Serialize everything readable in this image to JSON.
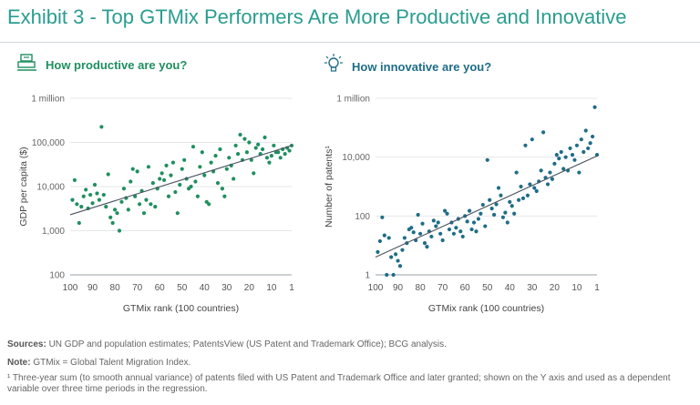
{
  "header": {
    "title": "Exhibit 3 - Top GTMix Performers Are More Productive and Innovative"
  },
  "colors": {
    "title": "#2a9d8f",
    "left_accent": "#1f8f5f",
    "right_accent": "#1f6d87",
    "dots_left": "#1f8f5f",
    "dots_right": "#1f6d87",
    "trend": "#4a5560"
  },
  "icons": {
    "left": "cash-register-icon",
    "right": "lightbulb-icon"
  },
  "chart_data": [
    {
      "type": "scatter",
      "subtitle": "How productive are you?",
      "xlabel": "GTMix rank  (100 countries)",
      "ylabel": "GDP per capita ($)",
      "xlim": [
        100,
        1
      ],
      "xticks": [
        100,
        90,
        80,
        70,
        60,
        50,
        40,
        30,
        20,
        10,
        1
      ],
      "yscale": "log",
      "ylim": [
        100,
        1000000
      ],
      "yticks": [
        100,
        1000,
        10000,
        100000,
        1000000
      ],
      "ytick_labels": [
        "100",
        "1,000",
        "10,000",
        "100,000",
        "1 million"
      ],
      "trendline": {
        "x": [
          100,
          1
        ],
        "y": [
          2300,
          85000
        ]
      },
      "points": [
        {
          "x": 99,
          "y": 5000
        },
        {
          "x": 98,
          "y": 14000
        },
        {
          "x": 97,
          "y": 4000
        },
        {
          "x": 96,
          "y": 1500
        },
        {
          "x": 95,
          "y": 3500
        },
        {
          "x": 94,
          "y": 6000
        },
        {
          "x": 93,
          "y": 8500
        },
        {
          "x": 92,
          "y": 3200
        },
        {
          "x": 91,
          "y": 6500
        },
        {
          "x": 90,
          "y": 4200
        },
        {
          "x": 89,
          "y": 11000
        },
        {
          "x": 88,
          "y": 7000
        },
        {
          "x": 87,
          "y": 5000
        },
        {
          "x": 86,
          "y": 225000
        },
        {
          "x": 85,
          "y": 6500
        },
        {
          "x": 84,
          "y": 3500
        },
        {
          "x": 83,
          "y": 19000
        },
        {
          "x": 82,
          "y": 2000
        },
        {
          "x": 81,
          "y": 1500
        },
        {
          "x": 80,
          "y": 3000
        },
        {
          "x": 79,
          "y": 2500
        },
        {
          "x": 78,
          "y": 1000
        },
        {
          "x": 77,
          "y": 4500
        },
        {
          "x": 76,
          "y": 9000
        },
        {
          "x": 75,
          "y": 5500
        },
        {
          "x": 74,
          "y": 3000
        },
        {
          "x": 73,
          "y": 13000
        },
        {
          "x": 72,
          "y": 25000
        },
        {
          "x": 71,
          "y": 6000
        },
        {
          "x": 70,
          "y": 22000
        },
        {
          "x": 69,
          "y": 4000
        },
        {
          "x": 68,
          "y": 8000
        },
        {
          "x": 67,
          "y": 2500
        },
        {
          "x": 66,
          "y": 5000
        },
        {
          "x": 65,
          "y": 28000
        },
        {
          "x": 64,
          "y": 4000
        },
        {
          "x": 63,
          "y": 12000
        },
        {
          "x": 62,
          "y": 3500
        },
        {
          "x": 61,
          "y": 9000
        },
        {
          "x": 60,
          "y": 15000
        },
        {
          "x": 59,
          "y": 20000
        },
        {
          "x": 58,
          "y": 14000
        },
        {
          "x": 57,
          "y": 30000
        },
        {
          "x": 56,
          "y": 6000
        },
        {
          "x": 55,
          "y": 18000
        },
        {
          "x": 54,
          "y": 35000
        },
        {
          "x": 53,
          "y": 7500
        },
        {
          "x": 52,
          "y": 2500
        },
        {
          "x": 51,
          "y": 11000
        },
        {
          "x": 50,
          "y": 25000
        },
        {
          "x": 49,
          "y": 40000
        },
        {
          "x": 48,
          "y": 15000
        },
        {
          "x": 47,
          "y": 9000
        },
        {
          "x": 46,
          "y": 10000
        },
        {
          "x": 45,
          "y": 80000
        },
        {
          "x": 44,
          "y": 13000
        },
        {
          "x": 43,
          "y": 6000
        },
        {
          "x": 42,
          "y": 28000
        },
        {
          "x": 41,
          "y": 60000
        },
        {
          "x": 40,
          "y": 18000
        },
        {
          "x": 39,
          "y": 4500
        },
        {
          "x": 38,
          "y": 4000
        },
        {
          "x": 37,
          "y": 35000
        },
        {
          "x": 36,
          "y": 22000
        },
        {
          "x": 35,
          "y": 50000
        },
        {
          "x": 34,
          "y": 12000
        },
        {
          "x": 33,
          "y": 70000
        },
        {
          "x": 32,
          "y": 9000
        },
        {
          "x": 31,
          "y": 6000
        },
        {
          "x": 30,
          "y": 25000
        },
        {
          "x": 29,
          "y": 45000
        },
        {
          "x": 28,
          "y": 30000
        },
        {
          "x": 27,
          "y": 15000
        },
        {
          "x": 26,
          "y": 85000
        },
        {
          "x": 25,
          "y": 55000
        },
        {
          "x": 24,
          "y": 150000
        },
        {
          "x": 23,
          "y": 40000
        },
        {
          "x": 22,
          "y": 120000
        },
        {
          "x": 21,
          "y": 60000
        },
        {
          "x": 20,
          "y": 100000
        },
        {
          "x": 19,
          "y": 40000
        },
        {
          "x": 18,
          "y": 20000
        },
        {
          "x": 17,
          "y": 75000
        },
        {
          "x": 16,
          "y": 90000
        },
        {
          "x": 15,
          "y": 55000
        },
        {
          "x": 14,
          "y": 70000
        },
        {
          "x": 13,
          "y": 130000
        },
        {
          "x": 12,
          "y": 45000
        },
        {
          "x": 11,
          "y": 35000
        },
        {
          "x": 10,
          "y": 50000
        },
        {
          "x": 9,
          "y": 85000
        },
        {
          "x": 8,
          "y": 60000
        },
        {
          "x": 7,
          "y": 60000
        },
        {
          "x": 6,
          "y": 45000
        },
        {
          "x": 5,
          "y": 70000
        },
        {
          "x": 4,
          "y": 55000
        },
        {
          "x": 3,
          "y": 75000
        },
        {
          "x": 2,
          "y": 65000
        },
        {
          "x": 1,
          "y": 85000
        }
      ]
    },
    {
      "type": "scatter",
      "subtitle": "How innovative are you?",
      "xlabel": "GTMix rank  (100 countries)",
      "ylabel": "Number of patents¹",
      "xlim": [
        100,
        1
      ],
      "xticks": [
        100,
        90,
        80,
        70,
        60,
        50,
        40,
        30,
        20,
        10,
        1
      ],
      "yscale": "log",
      "ylim": [
        1,
        1000000
      ],
      "yticks": [
        1,
        100,
        10000,
        1000000
      ],
      "ytick_labels": [
        "1",
        "100",
        "10,000",
        "1 million"
      ],
      "trendline": {
        "x": [
          100,
          1
        ],
        "y": [
          4,
          11000
        ]
      },
      "points": [
        {
          "x": 99,
          "y": 6
        },
        {
          "x": 98,
          "y": 14
        },
        {
          "x": 97,
          "y": 90
        },
        {
          "x": 96,
          "y": 22
        },
        {
          "x": 95,
          "y": 1
        },
        {
          "x": 94,
          "y": 18
        },
        {
          "x": 93,
          "y": 4
        },
        {
          "x": 92,
          "y": 1
        },
        {
          "x": 91,
          "y": 5
        },
        {
          "x": 90,
          "y": 3
        },
        {
          "x": 89,
          "y": 2
        },
        {
          "x": 88,
          "y": 7
        },
        {
          "x": 87,
          "y": 18
        },
        {
          "x": 86,
          "y": 12
        },
        {
          "x": 85,
          "y": 35
        },
        {
          "x": 84,
          "y": 40
        },
        {
          "x": 83,
          "y": 28
        },
        {
          "x": 82,
          "y": 15
        },
        {
          "x": 81,
          "y": 110
        },
        {
          "x": 80,
          "y": 25
        },
        {
          "x": 79,
          "y": 55
        },
        {
          "x": 78,
          "y": 12
        },
        {
          "x": 77,
          "y": 9
        },
        {
          "x": 76,
          "y": 30
        },
        {
          "x": 75,
          "y": 20
        },
        {
          "x": 74,
          "y": 70
        },
        {
          "x": 73,
          "y": 45
        },
        {
          "x": 72,
          "y": 60
        },
        {
          "x": 71,
          "y": 25
        },
        {
          "x": 70,
          "y": 15
        },
        {
          "x": 69,
          "y": 150
        },
        {
          "x": 68,
          "y": 120
        },
        {
          "x": 67,
          "y": 35
        },
        {
          "x": 66,
          "y": 60
        },
        {
          "x": 65,
          "y": 25
        },
        {
          "x": 64,
          "y": 40
        },
        {
          "x": 63,
          "y": 80
        },
        {
          "x": 62,
          "y": 30
        },
        {
          "x": 61,
          "y": 20
        },
        {
          "x": 60,
          "y": 100
        },
        {
          "x": 59,
          "y": 65
        },
        {
          "x": 58,
          "y": 150
        },
        {
          "x": 57,
          "y": 35
        },
        {
          "x": 56,
          "y": 60
        },
        {
          "x": 55,
          "y": 30
        },
        {
          "x": 54,
          "y": 80
        },
        {
          "x": 53,
          "y": 120
        },
        {
          "x": 52,
          "y": 240
        },
        {
          "x": 51,
          "y": 45
        },
        {
          "x": 50,
          "y": 8000
        },
        {
          "x": 49,
          "y": 350
        },
        {
          "x": 48,
          "y": 180
        },
        {
          "x": 47,
          "y": 110
        },
        {
          "x": 46,
          "y": 250
        },
        {
          "x": 45,
          "y": 900
        },
        {
          "x": 44,
          "y": 500
        },
        {
          "x": 43,
          "y": 90
        },
        {
          "x": 42,
          "y": 130
        },
        {
          "x": 41,
          "y": 60
        },
        {
          "x": 40,
          "y": 300
        },
        {
          "x": 39,
          "y": 220
        },
        {
          "x": 38,
          "y": 120
        },
        {
          "x": 37,
          "y": 3000
        },
        {
          "x": 36,
          "y": 350
        },
        {
          "x": 35,
          "y": 1000
        },
        {
          "x": 34,
          "y": 400
        },
        {
          "x": 33,
          "y": 25000
        },
        {
          "x": 32,
          "y": 500
        },
        {
          "x": 31,
          "y": 1200
        },
        {
          "x": 30,
          "y": 40000
        },
        {
          "x": 29,
          "y": 900
        },
        {
          "x": 28,
          "y": 700
        },
        {
          "x": 27,
          "y": 1500
        },
        {
          "x": 26,
          "y": 3500
        },
        {
          "x": 25,
          "y": 70000
        },
        {
          "x": 24,
          "y": 2000
        },
        {
          "x": 23,
          "y": 1200
        },
        {
          "x": 22,
          "y": 3000
        },
        {
          "x": 21,
          "y": 1800
        },
        {
          "x": 20,
          "y": 6000
        },
        {
          "x": 19,
          "y": 12000
        },
        {
          "x": 18,
          "y": 9000
        },
        {
          "x": 17,
          "y": 15000
        },
        {
          "x": 16,
          "y": 4000
        },
        {
          "x": 15,
          "y": 10000
        },
        {
          "x": 14,
          "y": 3500
        },
        {
          "x": 13,
          "y": 20000
        },
        {
          "x": 12,
          "y": 12000
        },
        {
          "x": 11,
          "y": 8000
        },
        {
          "x": 10,
          "y": 25000
        },
        {
          "x": 9,
          "y": 3000
        },
        {
          "x": 8,
          "y": 40000
        },
        {
          "x": 7,
          "y": 15000
        },
        {
          "x": 6,
          "y": 80000
        },
        {
          "x": 5,
          "y": 20000
        },
        {
          "x": 4,
          "y": 30000
        },
        {
          "x": 3,
          "y": 50000
        },
        {
          "x": 2,
          "y": 500000
        },
        {
          "x": 1,
          "y": 12000
        }
      ]
    }
  ],
  "notes": {
    "sources_label": "Sources:",
    "sources_text": " UN GDP and population estimates; PatentsView (US Patent and Trademark Office); BCG analysis.",
    "note_label": "Note:",
    "note_text": " GTMix = Global Talent Migration Index.",
    "footnote": "¹ Three-year sum (to smooth annual variance) of patents filed with US Patent and Trademark Office and later granted; shown on the Y axis and used as a dependent variable over three time periods in the regression."
  }
}
